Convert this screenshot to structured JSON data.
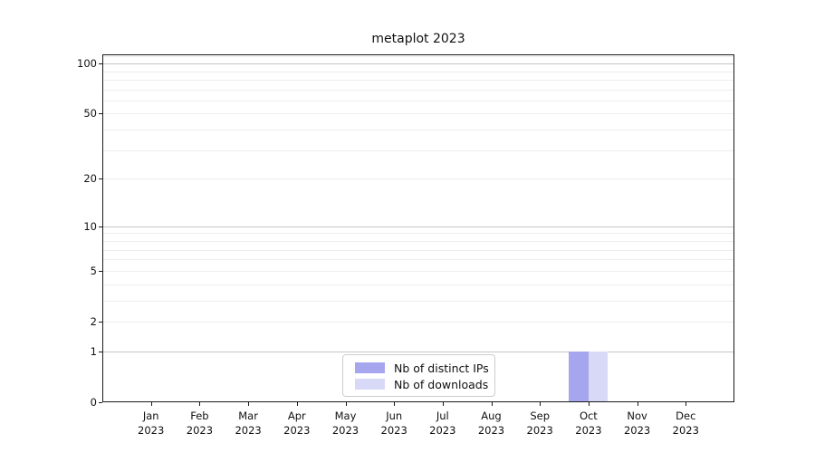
{
  "chart_data": {
    "type": "bar",
    "title": "metaplot 2023",
    "categories": [
      "Jan",
      "Feb",
      "Mar",
      "Apr",
      "May",
      "Jun",
      "Jul",
      "Aug",
      "Sep",
      "Oct",
      "Nov",
      "Dec"
    ],
    "x_year_label": "2023",
    "series": [
      {
        "name": "Nb of distinct IPs",
        "color": "#a6a6ef",
        "values": [
          0,
          0,
          0,
          0,
          0,
          0,
          0,
          0,
          0,
          1,
          0,
          0
        ]
      },
      {
        "name": "Nb of downloads",
        "color": "#d8d8f7",
        "values": [
          0,
          0,
          0,
          0,
          0,
          0,
          0,
          0,
          0,
          1,
          0,
          0
        ]
      }
    ],
    "xlabel": "",
    "ylabel": "",
    "yscale": "log1p",
    "ylim": [
      0,
      113.3
    ],
    "y_ticks": [
      0,
      1,
      2,
      5,
      10,
      20,
      50,
      100
    ],
    "y_major_gridlines": [
      1,
      10,
      100
    ],
    "y_minor_gridlines": [
      2,
      3,
      4,
      5,
      6,
      7,
      8,
      9,
      20,
      30,
      40,
      50,
      60,
      70,
      80,
      90,
      110
    ],
    "grid": "horizontal",
    "legend_position": "inside-bottom-center",
    "colors": {
      "axis": "#1a1a1a",
      "major_grid": "#c6c6c6",
      "minor_grid": "#ededed",
      "legend_border": "#cccccc",
      "legend_bg": "#ffffff",
      "background": "#ffffff",
      "text": "#111111"
    }
  }
}
